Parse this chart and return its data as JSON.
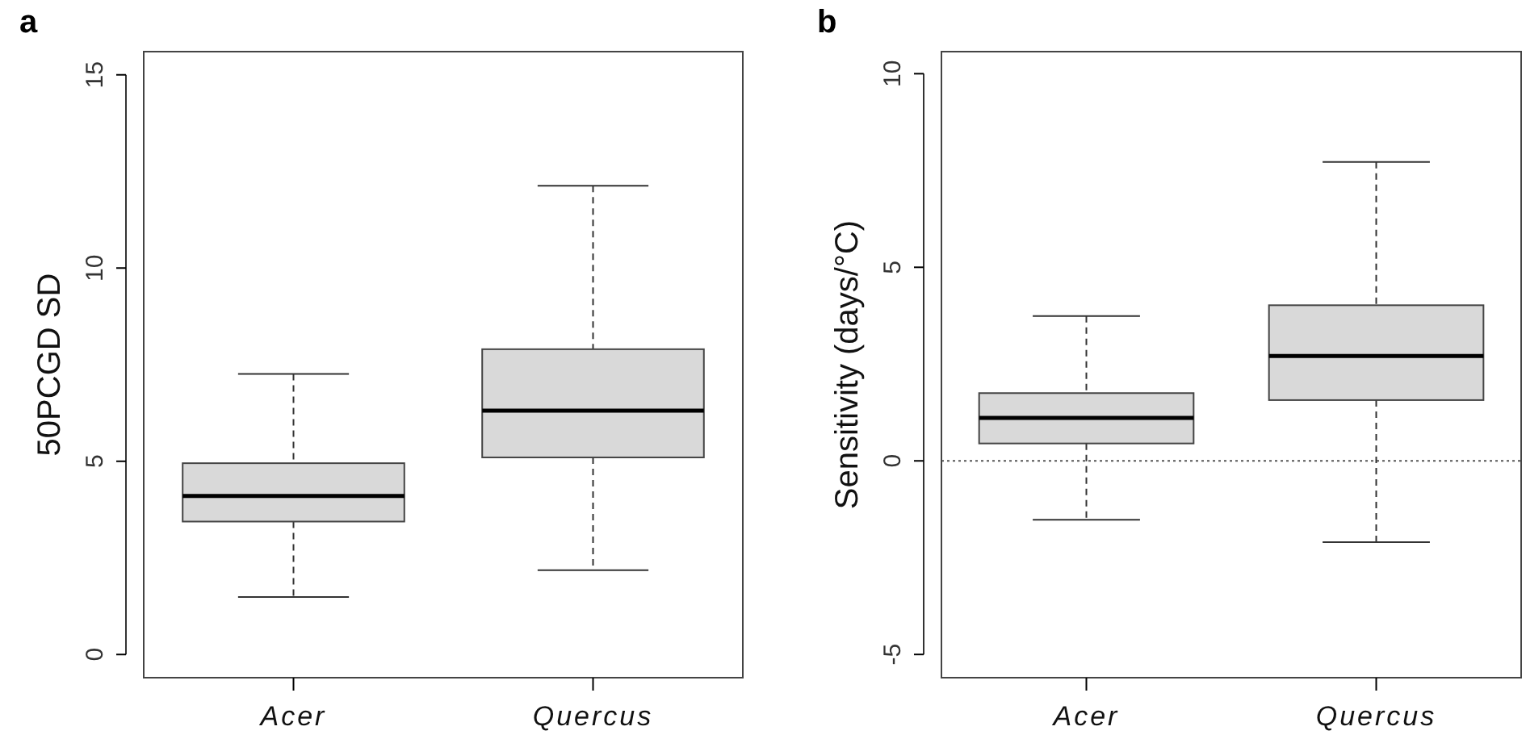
{
  "chart_data": [
    {
      "type": "box",
      "title": "a",
      "ylabel": "50PCGD SD",
      "categories": [
        "Acer",
        "Quercus"
      ],
      "color": "#d9d9d9",
      "ylim": [
        -0.6,
        15.6
      ],
      "yticks": [
        0,
        5,
        10,
        15
      ],
      "grid": false,
      "boxes": [
        {
          "low": 1.49,
          "q1": 3.44,
          "median": 4.1,
          "q3": 4.95,
          "high": 7.26
        },
        {
          "low": 2.18,
          "q1": 5.1,
          "median": 6.31,
          "q3": 7.9,
          "high": 12.13
        }
      ]
    },
    {
      "type": "box",
      "title": "b",
      "ylabel": "Sensitivity (days/°C)",
      "categories": [
        "Acer",
        "Quercus"
      ],
      "color": "#d9d9d9",
      "ylim": [
        -5.6,
        10.57
      ],
      "yticks": [
        -5,
        0,
        5,
        10
      ],
      "grid": false,
      "ref_lines": [
        {
          "axis": "y",
          "value": 0,
          "line_style": "dotted",
          "color": "#555555"
        }
      ],
      "boxes": [
        {
          "low": -1.52,
          "q1": 0.45,
          "median": 1.11,
          "q3": 1.75,
          "high": 3.74
        },
        {
          "low": -2.1,
          "q1": 1.57,
          "median": 2.71,
          "q3": 4.02,
          "high": 7.72
        }
      ]
    }
  ]
}
